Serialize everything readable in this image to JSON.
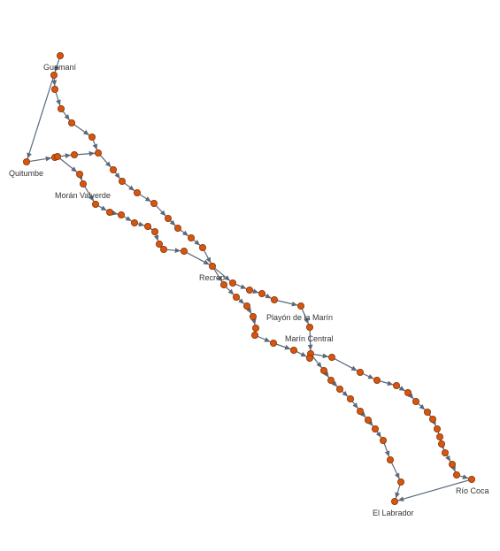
{
  "colors": {
    "node": "#d4560f",
    "node_stroke": "#8a3206",
    "edge": "#5b6878",
    "label": "#333333"
  },
  "stations": [
    {
      "id": "guamani",
      "label": "Guamaní"
    },
    {
      "id": "quitumbe",
      "label": "Quitumbe"
    },
    {
      "id": "moran_valverde",
      "label": "Morán Valverde"
    },
    {
      "id": "recreo",
      "label": "Recreo"
    },
    {
      "id": "playon_marin",
      "label": "Playón de la Marín"
    },
    {
      "id": "marin_central",
      "label": "Marín Central"
    },
    {
      "id": "rio_coca",
      "label": "Río Coca"
    },
    {
      "id": "el_labrador",
      "label": "El Labrador"
    }
  ]
}
